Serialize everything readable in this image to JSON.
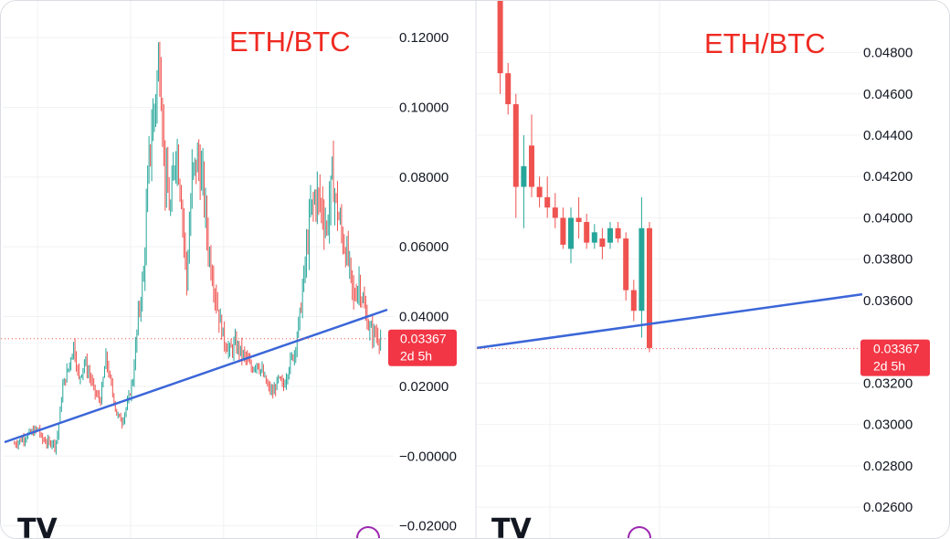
{
  "chart_data": [
    {
      "type": "candlestick",
      "title": "ETH/BTC",
      "ylim": [
        -0.0235,
        0.1305
      ],
      "y_ticks": [
        "0.12000",
        "0.10000",
        "0.08000",
        "0.06000",
        "0.04000",
        "0.02000",
        "−0.00000",
        "−0.02000"
      ],
      "y_tick_values": [
        0.12,
        0.1,
        0.08,
        0.06,
        0.04,
        0.02,
        0.0,
        -0.02
      ],
      "price_label": {
        "value": "0.03367",
        "countdown": "2d 5h"
      },
      "current_price": 0.03367,
      "trendline": {
        "color": "#3b66d8",
        "from": {
          "t": 0,
          "y": -0.002
        },
        "to": {
          "t": 126,
          "y": 0.036
        }
      },
      "close_path": [
        [
          0,
          0.0035
        ],
        [
          9,
          0.008
        ],
        [
          10,
          0.005
        ],
        [
          12,
          0.004
        ],
        [
          13,
          0.0035
        ],
        [
          14,
          0.0045
        ],
        [
          15,
          0.003
        ],
        [
          16,
          0.006
        ],
        [
          18,
          0.02
        ],
        [
          20,
          0.025
        ],
        [
          22,
          0.032
        ],
        [
          24,
          0.022
        ],
        [
          26,
          0.027
        ],
        [
          28,
          0.023
        ],
        [
          30,
          0.018
        ],
        [
          32,
          0.016
        ],
        [
          34,
          0.028
        ],
        [
          36,
          0.02
        ],
        [
          38,
          0.012
        ],
        [
          40,
          0.01
        ],
        [
          42,
          0.015
        ],
        [
          44,
          0.022
        ],
        [
          46,
          0.04
        ],
        [
          48,
          0.052
        ],
        [
          50,
          0.085
        ],
        [
          52,
          0.1
        ],
        [
          54,
          0.115
        ],
        [
          56,
          0.08
        ],
        [
          58,
          0.07
        ],
        [
          60,
          0.09
        ],
        [
          62,
          0.075
        ],
        [
          64,
          0.05
        ],
        [
          66,
          0.08
        ],
        [
          68,
          0.085
        ],
        [
          70,
          0.078
        ],
        [
          72,
          0.06
        ],
        [
          74,
          0.05
        ],
        [
          76,
          0.04
        ],
        [
          78,
          0.033
        ],
        [
          80,
          0.03
        ],
        [
          82,
          0.032
        ],
        [
          84,
          0.03
        ],
        [
          86,
          0.028
        ],
        [
          88,
          0.025
        ],
        [
          90,
          0.027
        ],
        [
          92,
          0.024
        ],
        [
          94,
          0.02
        ],
        [
          96,
          0.018
        ],
        [
          98,
          0.022
        ],
        [
          100,
          0.02
        ],
        [
          102,
          0.026
        ],
        [
          104,
          0.03
        ],
        [
          106,
          0.04
        ],
        [
          108,
          0.055
        ],
        [
          110,
          0.07
        ],
        [
          112,
          0.075
        ],
        [
          114,
          0.072
        ],
        [
          116,
          0.065
        ],
        [
          118,
          0.08
        ],
        [
          120,
          0.07
        ],
        [
          122,
          0.062
        ],
        [
          124,
          0.056
        ],
        [
          126,
          0.045
        ],
        [
          128,
          0.05
        ],
        [
          130,
          0.042
        ],
        [
          132,
          0.036
        ],
        [
          134,
          0.035
        ],
        [
          136,
          0.0337
        ]
      ]
    },
    {
      "type": "candlestick",
      "title": "ETH/BTC",
      "ylim": [
        0.0245,
        0.0505
      ],
      "y_ticks": [
        "0.04800",
        "0.04600",
        "0.04400",
        "0.04200",
        "0.04000",
        "0.03800",
        "0.03600",
        "0.03200",
        "0.03000",
        "0.02800",
        "0.02600"
      ],
      "y_tick_values": [
        0.048,
        0.046,
        0.044,
        0.042,
        0.04,
        0.038,
        0.036,
        0.032,
        0.03,
        0.028,
        0.026
      ],
      "price_label": {
        "value": "0.03367",
        "countdown": "2d 5h"
      },
      "current_price": 0.03367,
      "trendline": {
        "color": "#3b66d8",
        "from": {
          "t": 0,
          "y": 0.0337
        },
        "to": {
          "t": 28,
          "y": 0.0363
        }
      },
      "candles": [
        {
          "t": 1,
          "open": 0.051,
          "high": 0.0515,
          "low": 0.046,
          "close": 0.047
        },
        {
          "t": 2,
          "open": 0.047,
          "high": 0.0475,
          "low": 0.045,
          "close": 0.0455
        },
        {
          "t": 3,
          "open": 0.0455,
          "high": 0.046,
          "low": 0.04,
          "close": 0.0415
        },
        {
          "t": 4,
          "open": 0.0415,
          "high": 0.044,
          "low": 0.0395,
          "close": 0.0425
        },
        {
          "t": 5,
          "open": 0.0435,
          "high": 0.045,
          "low": 0.041,
          "close": 0.0415
        },
        {
          "t": 6,
          "open": 0.0415,
          "high": 0.042,
          "low": 0.0405,
          "close": 0.041
        },
        {
          "t": 7,
          "open": 0.041,
          "high": 0.042,
          "low": 0.04,
          "close": 0.0405
        },
        {
          "t": 8,
          "open": 0.0405,
          "high": 0.0412,
          "low": 0.0395,
          "close": 0.04
        },
        {
          "t": 9,
          "open": 0.04,
          "high": 0.0405,
          "low": 0.0385,
          "close": 0.0387
        },
        {
          "t": 10,
          "open": 0.0385,
          "high": 0.0405,
          "low": 0.0378,
          "close": 0.04
        },
        {
          "t": 11,
          "open": 0.04,
          "high": 0.041,
          "low": 0.039,
          "close": 0.0398
        },
        {
          "t": 12,
          "open": 0.0398,
          "high": 0.0402,
          "low": 0.0385,
          "close": 0.0388
        },
        {
          "t": 13,
          "open": 0.0388,
          "high": 0.0397,
          "low": 0.0385,
          "close": 0.0393
        },
        {
          "t": 14,
          "open": 0.039,
          "high": 0.0395,
          "low": 0.038,
          "close": 0.0386
        },
        {
          "t": 15,
          "open": 0.0388,
          "high": 0.0398,
          "low": 0.0385,
          "close": 0.0395
        },
        {
          "t": 16,
          "open": 0.0395,
          "high": 0.0398,
          "low": 0.0388,
          "close": 0.039
        },
        {
          "t": 17,
          "open": 0.039,
          "high": 0.0393,
          "low": 0.036,
          "close": 0.0365
        },
        {
          "t": 18,
          "open": 0.0365,
          "high": 0.037,
          "low": 0.035,
          "close": 0.0355
        },
        {
          "t": 19,
          "open": 0.0355,
          "high": 0.041,
          "low": 0.0342,
          "close": 0.0395
        },
        {
          "t": 20,
          "open": 0.0395,
          "high": 0.0398,
          "low": 0.0335,
          "close": 0.0337
        }
      ]
    }
  ]
}
